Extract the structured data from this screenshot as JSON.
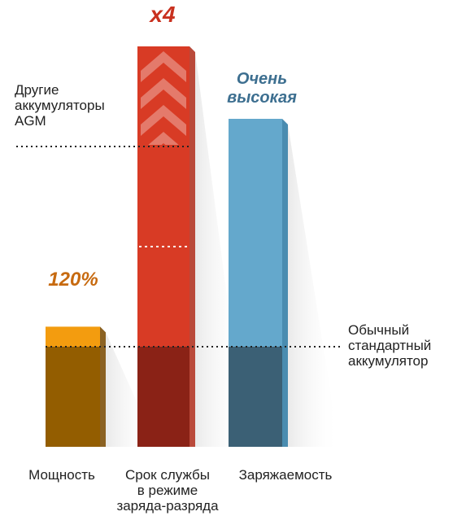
{
  "chart_data": {
    "type": "bar",
    "categories": [
      "Мощность",
      "Срок службы\nв режиме\nзаряда-разряда",
      "Заряжаемость"
    ],
    "series": [
      {
        "values": [
          1.2,
          4,
          null
        ],
        "top_labels": [
          "120%",
          "x4",
          "Очень\nвысокая"
        ]
      }
    ],
    "baseline_value": 1,
    "reference_lines": [
      {
        "label": "Обычный\nстандартный\nаккумулятор",
        "value": 1
      },
      {
        "label": "Другие\nаккумуляторы\nAGM",
        "value": 3
      }
    ],
    "intermediate_marker_value": 2,
    "colors": {
      "power_top": "#F39C0F",
      "power_base": "#935D00",
      "life_top": "#D83B25",
      "life_base": "#8A2216",
      "life_side": "#B12E1C",
      "charge_top": "#64A8CC",
      "charge_base": "#3B6075",
      "charge_side": "#2E7BA6",
      "label_orange": "#C76A10",
      "label_red": "#C9311F",
      "label_blue": "#3D6F90"
    }
  }
}
